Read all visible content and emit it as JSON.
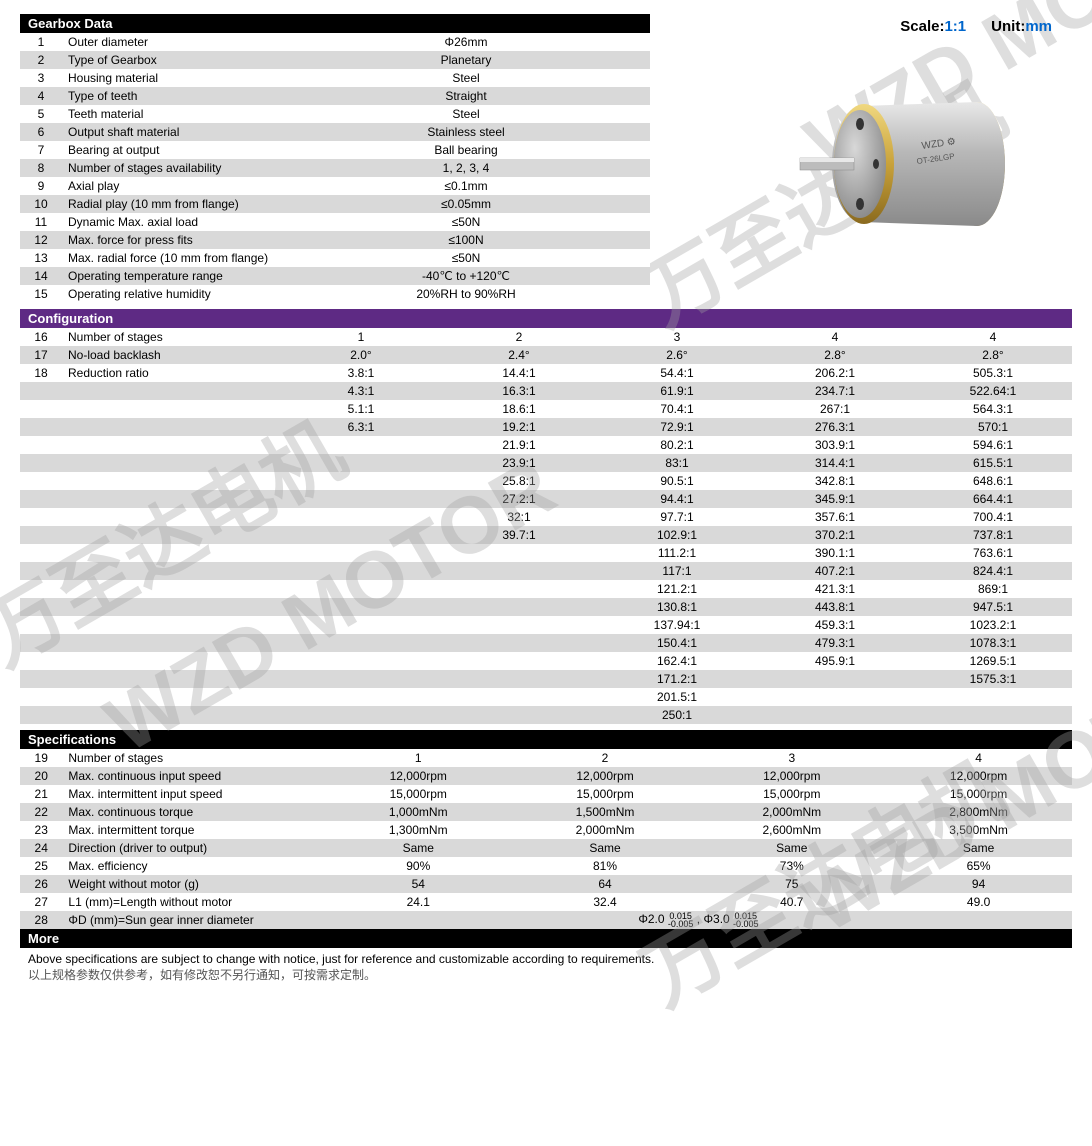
{
  "scale_label": "Scale:",
  "scale_value": "1:1",
  "unit_label": "Unit:",
  "unit_value": "mm",
  "colors": {
    "header_black": "#000000",
    "header_purple": "#5e2a84",
    "row_grey": "#d9d9d9",
    "row_white": "#ffffff",
    "accent_blue": "#0066cc"
  },
  "gearbox": {
    "title": "Gearbox Data",
    "rows": [
      {
        "n": "1",
        "label": "Outer diameter",
        "value": "Φ26mm"
      },
      {
        "n": "2",
        "label": "Type of Gearbox",
        "value": "Planetary"
      },
      {
        "n": "3",
        "label": "Housing material",
        "value": "Steel"
      },
      {
        "n": "4",
        "label": "Type of teeth",
        "value": "Straight"
      },
      {
        "n": "5",
        "label": "Teeth material",
        "value": "Steel"
      },
      {
        "n": "6",
        "label": "Output shaft material",
        "value": "Stainless steel"
      },
      {
        "n": "7",
        "label": "Bearing at output",
        "value": "Ball bearing"
      },
      {
        "n": "8",
        "label": "Number of stages availability",
        "value": "1, 2, 3, 4"
      },
      {
        "n": "9",
        "label": "Axial play",
        "value": "≤0.1mm"
      },
      {
        "n": "10",
        "label": "Radial play (10 mm from flange)",
        "value": "≤0.05mm"
      },
      {
        "n": "11",
        "label": "Dynamic Max. axial load",
        "value": "≤50N"
      },
      {
        "n": "12",
        "label": "Max. force for press fits",
        "value": "≤100N"
      },
      {
        "n": "13",
        "label": "Max. radial force (10 mm from flange)",
        "value": "≤50N"
      },
      {
        "n": "14",
        "label": "Operating temperature range",
        "value": "-40℃ to +120℃"
      },
      {
        "n": "15",
        "label": "Operating relative humidity",
        "value": "20%RH to 90%RH"
      }
    ]
  },
  "configuration": {
    "title": "Configuration",
    "header_rows": [
      {
        "n": "16",
        "label": "Number of stages",
        "cols": [
          "1",
          "2",
          "3",
          "4",
          "4"
        ]
      },
      {
        "n": "17",
        "label": "No-load backlash",
        "cols": [
          "2.0°",
          "2.4°",
          "2.6°",
          "2.8°",
          "2.8°"
        ]
      }
    ],
    "ratio_label_n": "18",
    "ratio_label": "Reduction ratio",
    "ratio_rows": [
      [
        "3.8:1",
        "14.4:1",
        "54.4:1",
        "206.2:1",
        "505.3:1"
      ],
      [
        "4.3:1",
        "16.3:1",
        "61.9:1",
        "234.7:1",
        "522.64:1"
      ],
      [
        "5.1:1",
        "18.6:1",
        "70.4:1",
        "267:1",
        "564.3:1"
      ],
      [
        "6.3:1",
        "19.2:1",
        "72.9:1",
        "276.3:1",
        "570:1"
      ],
      [
        "",
        "21.9:1",
        "80.2:1",
        "303.9:1",
        "594.6:1"
      ],
      [
        "",
        "23.9:1",
        "83:1",
        "314.4:1",
        "615.5:1"
      ],
      [
        "",
        "25.8:1",
        "90.5:1",
        "342.8:1",
        "648.6:1"
      ],
      [
        "",
        "27.2:1",
        "94.4:1",
        "345.9:1",
        "664.4:1"
      ],
      [
        "",
        "32:1",
        "97.7:1",
        "357.6:1",
        "700.4:1"
      ],
      [
        "",
        "39.7:1",
        "102.9:1",
        "370.2:1",
        "737.8:1"
      ],
      [
        "",
        "",
        "111.2:1",
        "390.1:1",
        "763.6:1"
      ],
      [
        "",
        "",
        "117:1",
        "407.2:1",
        "824.4:1"
      ],
      [
        "",
        "",
        "121.2:1",
        "421.3:1",
        "869:1"
      ],
      [
        "",
        "",
        "130.8:1",
        "443.8:1",
        "947.5:1"
      ],
      [
        "",
        "",
        "137.94:1",
        "459.3:1",
        "1023.2:1"
      ],
      [
        "",
        "",
        "150.4:1",
        "479.3:1",
        "1078.3:1"
      ],
      [
        "",
        "",
        "162.4:1",
        "495.9:1",
        "1269.5:1"
      ],
      [
        "",
        "",
        "171.2:1",
        "",
        "1575.3:1"
      ],
      [
        "",
        "",
        "201.5:1",
        "",
        ""
      ],
      [
        "",
        "",
        "250:1",
        "",
        ""
      ]
    ]
  },
  "specifications": {
    "title": "Specifications",
    "rows": [
      {
        "n": "19",
        "label": "Number of stages",
        "cols": [
          "1",
          "2",
          "3",
          "4"
        ]
      },
      {
        "n": "20",
        "label": "Max. continuous input speed",
        "cols": [
          "12,000rpm",
          "12,000rpm",
          "12,000rpm",
          "12,000rpm"
        ]
      },
      {
        "n": "21",
        "label": "Max. intermittent input speed",
        "cols": [
          "15,000rpm",
          "15,000rpm",
          "15,000rpm",
          "15,000rpm"
        ]
      },
      {
        "n": "22",
        "label": "Max. continuous torque",
        "cols": [
          "1,000mNm",
          "1,500mNm",
          "2,000mNm",
          "2,800mNm"
        ]
      },
      {
        "n": "23",
        "label": "Max. intermittent torque",
        "cols": [
          "1,300mNm",
          "2,000mNm",
          "2,600mNm",
          "3,500mNm"
        ]
      },
      {
        "n": "24",
        "label": "Direction (driver to output)",
        "cols": [
          "Same",
          "Same",
          "Same",
          "Same"
        ]
      },
      {
        "n": "25",
        "label": "Max. efficiency",
        "cols": [
          "90%",
          "81%",
          "73%",
          "65%"
        ]
      },
      {
        "n": "26",
        "label": "Weight without motor (g)",
        "cols": [
          "54",
          "64",
          "75",
          "94"
        ]
      },
      {
        "n": "27",
        "label": "L1 (mm)=Length without motor",
        "cols": [
          "24.1",
          "32.4",
          "40.7",
          "49.0"
        ]
      }
    ],
    "row28": {
      "n": "28",
      "label": "ΦD (mm)=Sun gear inner diameter",
      "value": "Φ2.0 ⁻⁰·⁰⁰⁵⁺⁰·⁰¹⁵ , Φ3.0 ⁻⁰·⁰⁰⁵⁺⁰·⁰¹⁵"
    }
  },
  "more": {
    "title": "More",
    "note_en": "Above specifications are subject to change with notice, just for reference and customizable according to requirements.",
    "note_cn": "以上规格参数仅供参考，如有修改恕不另行通知，可按需求定制。"
  },
  "watermarks": {
    "en": "WZD MOTOR",
    "cn": "万至达电机"
  }
}
